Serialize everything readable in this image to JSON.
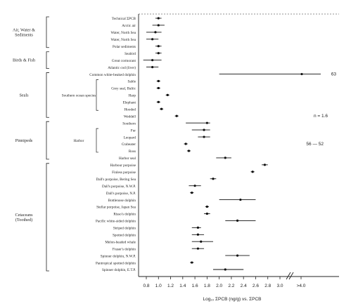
{
  "chart_data": {
    "type": "scatter",
    "subtype": "forest-plot",
    "title": "",
    "xlabel": "Log₁₀ ΣPCB (ng/g) vs. ΣPCB",
    "x_ticks": [
      "0.8",
      "1.0",
      "1.2",
      "1.4",
      "1.6",
      "1.8",
      "2.0",
      "2.2",
      "2.4",
      "2.6",
      "2.8",
      "3.0",
      ">4.0"
    ],
    "axis_break": "3.0 // >4.0",
    "grid": false,
    "groups": [
      {
        "label": "Air, Water & Sediments"
      },
      {
        "label": "Birds & Fish"
      },
      {
        "label": "Seals"
      },
      {
        "label": "Pinnipeds"
      },
      {
        "label": "Cetaceans (Toothed)"
      }
    ],
    "subgroups": [
      {
        "label": "Southern ocean species"
      },
      {
        "label": "Harbor"
      }
    ],
    "rows": [
      {
        "label": "Technical ΣPCB",
        "est": 1.0,
        "lo": 0.95,
        "hi": 1.05
      },
      {
        "label": "Arctic air",
        "est": 1.0,
        "lo": 0.9,
        "hi": 1.1
      },
      {
        "label": "Water, North Sea",
        "est": 0.95,
        "lo": 0.8,
        "hi": 1.05
      },
      {
        "label": "Water, North Sea",
        "est": 0.9,
        "lo": 0.8,
        "hi": 1.0
      },
      {
        "label": "Polar sediments",
        "est": 1.0,
        "lo": 0.95,
        "hi": 1.05
      },
      {
        "label": "Seabird",
        "est": 1.0,
        "lo": 0.95,
        "hi": 1.05
      },
      {
        "label": "Great cormorant",
        "est": 0.9,
        "lo": 0.75,
        "hi": 1.05
      },
      {
        "label": "Atlantic cod (liver)",
        "est": 0.9,
        "lo": 0.8,
        "hi": 1.0
      },
      {
        "label": "Common white-beaked dolphin",
        "est": 4.2,
        "lo": 2.0,
        "hi": 4.8
      },
      {
        "label": "Sable",
        "est": 1.0,
        "lo": 0.97,
        "hi": 1.03
      },
      {
        "label": "Grey seal, Baltic",
        "est": 1.0,
        "lo": 0.97,
        "hi": 1.03
      },
      {
        "label": "Harp",
        "est": 1.15,
        "lo": 1.12,
        "hi": 1.18
      },
      {
        "label": "Elephant",
        "est": 1.0,
        "lo": 0.97,
        "hi": 1.03
      },
      {
        "label": "Hooded",
        "est": 1.05,
        "lo": 1.02,
        "hi": 1.08
      },
      {
        "label": "Weddell",
        "est": 1.3,
        "lo": 1.27,
        "hi": 1.33
      },
      {
        "label": "Southern",
        "est": 1.8,
        "lo": 1.45,
        "hi": 1.85
      },
      {
        "label": "Fur",
        "est": 1.75,
        "lo": 1.55,
        "hi": 1.85
      },
      {
        "label": "Leopard",
        "est": 1.75,
        "lo": 1.65,
        "hi": 1.85
      },
      {
        "label": "Crabeater",
        "est": 1.45,
        "lo": 1.42,
        "hi": 1.48
      },
      {
        "label": "Ross",
        "est": 1.5,
        "lo": 1.47,
        "hi": 1.53
      },
      {
        "label": "Harbor seal",
        "est": 2.1,
        "lo": 1.95,
        "hi": 2.2
      },
      {
        "label": "Harbour porpoise",
        "est": 2.75,
        "lo": 2.7,
        "hi": 2.8
      },
      {
        "label": "Finless porpoise",
        "est": 2.55,
        "lo": 2.52,
        "hi": 2.58
      },
      {
        "label": "Dall's porpoise, Bering Sea",
        "est": 1.9,
        "lo": 1.85,
        "hi": 1.95
      },
      {
        "label": "Dall's porpoise, N.W.P.",
        "est": 1.6,
        "lo": 1.5,
        "hi": 1.7
      },
      {
        "label": "Dall's porpoise, N.P.",
        "est": 1.55,
        "lo": 1.52,
        "hi": 1.58
      },
      {
        "label": "Bottlenose dolphin",
        "est": 2.35,
        "lo": 2.0,
        "hi": 2.6
      },
      {
        "label": "Stellar porpoise, Japan Sea",
        "est": 1.8,
        "lo": 1.77,
        "hi": 1.83
      },
      {
        "label": "Risso's dolphin",
        "est": 1.8,
        "lo": 1.75,
        "hi": 1.85
      },
      {
        "label": "Pacific white-sided dolphin",
        "est": 2.3,
        "lo": 2.1,
        "hi": 2.6
      },
      {
        "label": "Striped dolphin",
        "est": 1.65,
        "lo": 1.55,
        "hi": 1.7
      },
      {
        "label": "Spotted dolphin",
        "est": 1.65,
        "lo": 1.55,
        "hi": 1.75
      },
      {
        "label": "Melon-headed whale",
        "est": 1.7,
        "lo": 1.55,
        "hi": 1.9
      },
      {
        "label": "Fraser's dolphin",
        "est": 1.65,
        "lo": 1.55,
        "hi": 1.75
      },
      {
        "label": "Spinner dolphin, N.W.P.",
        "est": 2.3,
        "lo": 2.1,
        "hi": 2.5
      },
      {
        "label": "Pantropical spotted dolphin",
        "est": 1.55,
        "lo": 1.52,
        "hi": 1.58
      },
      {
        "label": "Spinner dolphin, E.T.P.",
        "est": 2.1,
        "lo": 1.9,
        "hi": 2.4
      }
    ],
    "annotations": [
      {
        "text": "63"
      },
      {
        "text": "n = 1.6"
      },
      {
        "text": "56 — 52"
      }
    ]
  }
}
